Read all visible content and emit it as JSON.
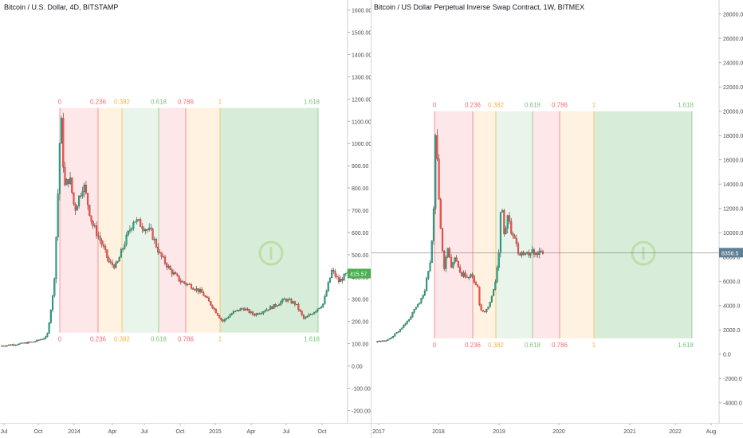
{
  "chart_data": [
    {
      "type": "candlestick",
      "title": "Bitcoin / U.S. Dollar, 4D, BITSTAMP",
      "ylim": [
        -220,
        1620
      ],
      "y_ticks": [
        -200,
        -100,
        0,
        100,
        200,
        300,
        400,
        500,
        600,
        700,
        800,
        900,
        1000,
        1100,
        1200,
        1300,
        1400,
        1500,
        1600
      ],
      "y_tick_labels": [
        "-200.00",
        "-100.00",
        "0.00",
        "100.00",
        "200.00",
        "300.00",
        "400.00",
        "500.00",
        "600.00",
        "700.00",
        "800.00",
        "900.00",
        "1000.00",
        "1100.00",
        "1200.00",
        "1300.00",
        "1400.00",
        "1500.00",
        "1600.00"
      ],
      "x_tick_labels": [
        "Jul",
        "Oct",
        "2014",
        "Apr",
        "Jul",
        "Oct",
        "2015",
        "Apr",
        "Jul",
        "Oct"
      ],
      "last_price": 415.57,
      "last_price_label": "415.57",
      "fib_levels": [
        {
          "label": "0",
          "color": "#f23645"
        },
        {
          "label": "0.236",
          "color": "#f23645"
        },
        {
          "label": "0.382",
          "color": "#ff9800"
        },
        {
          "label": "0.618",
          "color": "#4caf50"
        },
        {
          "label": "0.786",
          "color": "#f23645"
        },
        {
          "label": "1",
          "color": "#ff9800"
        },
        {
          "label": "1.618",
          "color": "#4caf50"
        }
      ],
      "fib_top_price": 1160,
      "fib_bottom_price": 150,
      "price_path": [
        {
          "t": 0.0,
          "p": 90
        },
        {
          "t": 0.06,
          "p": 100
        },
        {
          "t": 0.1,
          "p": 110
        },
        {
          "t": 0.135,
          "p": 130
        },
        {
          "t": 0.155,
          "p": 350
        },
        {
          "t": 0.165,
          "p": 700
        },
        {
          "t": 0.175,
          "p": 1150
        },
        {
          "t": 0.185,
          "p": 800
        },
        {
          "t": 0.2,
          "p": 850
        },
        {
          "t": 0.215,
          "p": 700
        },
        {
          "t": 0.24,
          "p": 820
        },
        {
          "t": 0.265,
          "p": 640
        },
        {
          "t": 0.29,
          "p": 560
        },
        {
          "t": 0.315,
          "p": 460
        },
        {
          "t": 0.335,
          "p": 450
        },
        {
          "t": 0.36,
          "p": 560
        },
        {
          "t": 0.385,
          "p": 660
        },
        {
          "t": 0.41,
          "p": 630
        },
        {
          "t": 0.435,
          "p": 600
        },
        {
          "t": 0.46,
          "p": 500
        },
        {
          "t": 0.49,
          "p": 430
        },
        {
          "t": 0.52,
          "p": 380
        },
        {
          "t": 0.55,
          "p": 360
        },
        {
          "t": 0.58,
          "p": 330
        },
        {
          "t": 0.61,
          "p": 270
        },
        {
          "t": 0.64,
          "p": 200
        },
        {
          "t": 0.67,
          "p": 240
        },
        {
          "t": 0.7,
          "p": 260
        },
        {
          "t": 0.73,
          "p": 230
        },
        {
          "t": 0.76,
          "p": 250
        },
        {
          "t": 0.79,
          "p": 270
        },
        {
          "t": 0.82,
          "p": 300
        },
        {
          "t": 0.85,
          "p": 280
        },
        {
          "t": 0.875,
          "p": 210
        },
        {
          "t": 0.9,
          "p": 240
        },
        {
          "t": 0.93,
          "p": 280
        },
        {
          "t": 0.955,
          "p": 430
        },
        {
          "t": 0.975,
          "p": 380
        },
        {
          "t": 1.0,
          "p": 415.57
        }
      ]
    },
    {
      "type": "candlestick",
      "title": "Bitcoin / US Dollar Perpetual Inverse Swap Contract, 1W, BITMEX",
      "ylim": [
        -5000,
        28700
      ],
      "y_ticks": [
        -4000,
        -2000,
        0,
        2000,
        4000,
        6000,
        8000,
        10000,
        12000,
        14000,
        16000,
        18000,
        20000,
        22000,
        24000,
        26000,
        28000
      ],
      "y_tick_labels": [
        "-4000.0",
        "-2000.0",
        "0.0",
        "2000.0",
        "4000.0",
        "6000.0",
        "8000.0",
        "10000.0",
        "12000.0",
        "14000.0",
        "16000.0",
        "18000.0",
        "20000.0",
        "22000.0",
        "24000.0",
        "26000.0",
        "28000.0"
      ],
      "x_tick_labels": [
        "2017",
        "2018",
        "2019",
        "2020",
        "2021",
        "2022",
        "Aug"
      ],
      "last_price": 8356.5,
      "last_price_label": "8356.5",
      "fib_levels": [
        {
          "label": "0",
          "color": "#f23645"
        },
        {
          "label": "0.236",
          "color": "#f23645"
        },
        {
          "label": "0.382",
          "color": "#ff9800"
        },
        {
          "label": "0.618",
          "color": "#4caf50"
        },
        {
          "label": "0.786",
          "color": "#f23645"
        },
        {
          "label": "1",
          "color": "#ff9800"
        },
        {
          "label": "1.618",
          "color": "#4caf50"
        }
      ],
      "fib_top_price": 20000,
      "fib_bottom_price": 1300,
      "price_path": [
        {
          "t": 0.0,
          "p": 1000
        },
        {
          "t": 0.07,
          "p": 1100
        },
        {
          "t": 0.13,
          "p": 1800
        },
        {
          "t": 0.19,
          "p": 2700
        },
        {
          "t": 0.25,
          "p": 4000
        },
        {
          "t": 0.29,
          "p": 5000
        },
        {
          "t": 0.325,
          "p": 7500
        },
        {
          "t": 0.345,
          "p": 11000
        },
        {
          "t": 0.36,
          "p": 19500
        },
        {
          "t": 0.375,
          "p": 14000
        },
        {
          "t": 0.39,
          "p": 10000
        },
        {
          "t": 0.41,
          "p": 7000
        },
        {
          "t": 0.43,
          "p": 9000
        },
        {
          "t": 0.45,
          "p": 7000
        },
        {
          "t": 0.48,
          "p": 8000
        },
        {
          "t": 0.51,
          "p": 6500
        },
        {
          "t": 0.55,
          "p": 6500
        },
        {
          "t": 0.58,
          "p": 6300
        },
        {
          "t": 0.61,
          "p": 5500
        },
        {
          "t": 0.625,
          "p": 3700
        },
        {
          "t": 0.65,
          "p": 3500
        },
        {
          "t": 0.68,
          "p": 4000
        },
        {
          "t": 0.71,
          "p": 5500
        },
        {
          "t": 0.735,
          "p": 8000
        },
        {
          "t": 0.75,
          "p": 12500
        },
        {
          "t": 0.77,
          "p": 10000
        },
        {
          "t": 0.79,
          "p": 11500
        },
        {
          "t": 0.81,
          "p": 10200
        },
        {
          "t": 0.83,
          "p": 9800
        },
        {
          "t": 0.85,
          "p": 8356.5
        }
      ]
    }
  ]
}
